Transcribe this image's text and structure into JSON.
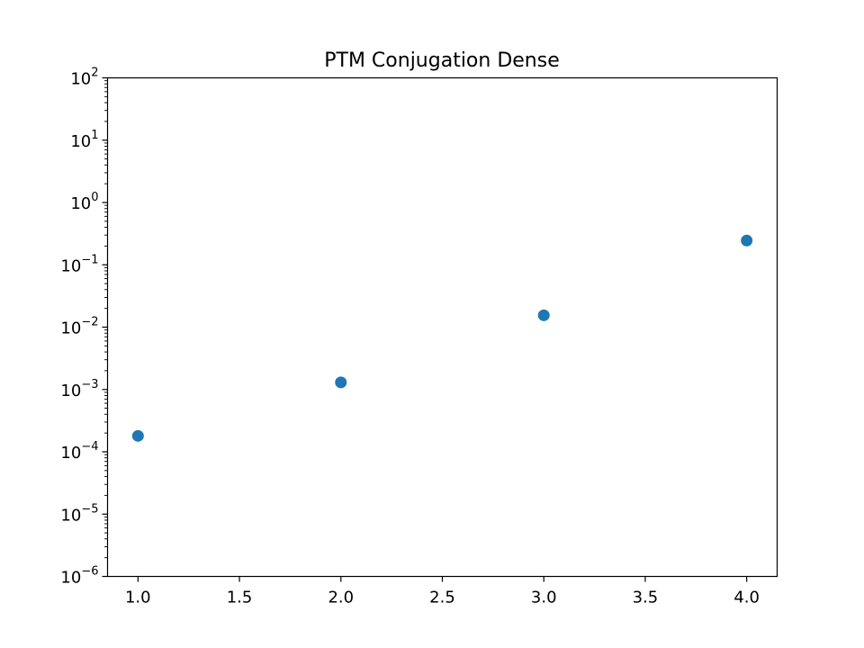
{
  "chart_data": {
    "type": "scatter",
    "title": "PTM Conjugation Dense",
    "xlabel": "",
    "ylabel": "",
    "x_scale": "linear",
    "y_scale": "log",
    "xlim": [
      0.85,
      4.15
    ],
    "ylim": [
      1e-06,
      100
    ],
    "x_ticks": [
      1.0,
      1.5,
      2.0,
      2.5,
      3.0,
      3.5,
      4.0
    ],
    "x_tick_labels": [
      "1.0",
      "1.5",
      "2.0",
      "2.5",
      "3.0",
      "3.5",
      "4.0"
    ],
    "y_ticks": [
      1e-06,
      1e-05,
      0.0001,
      0.001,
      0.01,
      0.1,
      1,
      10,
      100
    ],
    "y_tick_labels": [
      {
        "base": "10",
        "exp": "−6"
      },
      {
        "base": "10",
        "exp": "−5"
      },
      {
        "base": "10",
        "exp": "−4"
      },
      {
        "base": "10",
        "exp": "−3"
      },
      {
        "base": "10",
        "exp": "−2"
      },
      {
        "base": "10",
        "exp": "−1"
      },
      {
        "base": "10",
        "exp": "0"
      },
      {
        "base": "10",
        "exp": "1"
      },
      {
        "base": "10",
        "exp": "2"
      }
    ],
    "grid": false,
    "series": [
      {
        "color": "#1f77b4",
        "x": [
          1,
          2,
          3,
          4
        ],
        "y": [
          0.00018,
          0.0013,
          0.0155,
          0.245
        ]
      }
    ]
  }
}
